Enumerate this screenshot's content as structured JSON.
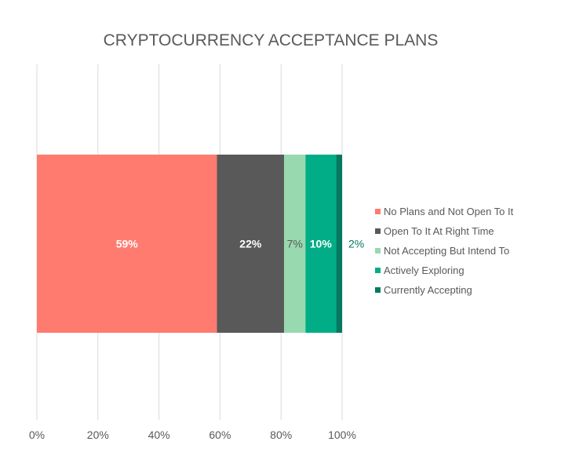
{
  "chart_data": {
    "type": "bar",
    "orientation": "horizontal",
    "stacked": true,
    "title": "CRYPTOCURRENCY ACCEPTANCE PLANS",
    "xlabel": "",
    "ylabel": "",
    "xlim": [
      0,
      100
    ],
    "xticks": [
      "0%",
      "20%",
      "40%",
      "60%",
      "80%",
      "100%"
    ],
    "grid": "vertical",
    "legend_position": "right",
    "series": [
      {
        "name": "No Plans and Not Open To It",
        "value": 59,
        "label": "59%",
        "color": "#FF7B6F",
        "label_color": "#ffffff",
        "label_placement": "inside"
      },
      {
        "name": "Open To It At Right Time",
        "value": 22,
        "label": "22%",
        "color": "#595959",
        "label_color": "#ffffff",
        "label_placement": "inside"
      },
      {
        "name": "Not Accepting But Intend To",
        "value": 7,
        "label": "7%",
        "color": "#98D9AF",
        "label_color": "#595959",
        "label_placement": "inside"
      },
      {
        "name": "Actively Exploring",
        "value": 10,
        "label": "10%",
        "color": "#00AD86",
        "label_color": "#ffffff",
        "label_placement": "inside"
      },
      {
        "name": "Currently Accepting",
        "value": 2,
        "label": "2%",
        "color": "#007A60",
        "label_color": "#007A60",
        "label_placement": "outside"
      }
    ]
  }
}
